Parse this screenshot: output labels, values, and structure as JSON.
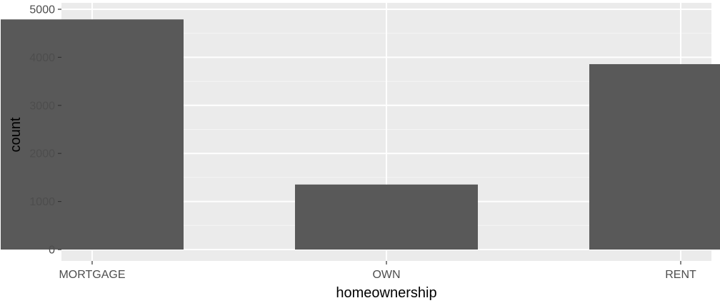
{
  "chart_data": {
    "type": "bar",
    "title": "",
    "xlabel": "homeownership",
    "ylabel": "count",
    "categories": [
      "MORTGAGE",
      "OWN",
      "RENT"
    ],
    "values": [
      4789,
      1353,
      3858
    ],
    "ylim": [
      -220,
      5000
    ],
    "yticks": [
      0,
      1000,
      2000,
      3000,
      4000,
      5000
    ],
    "ytick_labels": [
      "0",
      "1000",
      "2000",
      "3000",
      "4000",
      "5000"
    ],
    "grid": true,
    "legend": "none",
    "colors": {
      "bar": "#595959",
      "panel": "#ebebeb",
      "grid_major": "#ffffff",
      "grid_minor": "#f5f5f5",
      "tick_text": "#4d4d4d",
      "tick_mark": "#333333"
    }
  }
}
